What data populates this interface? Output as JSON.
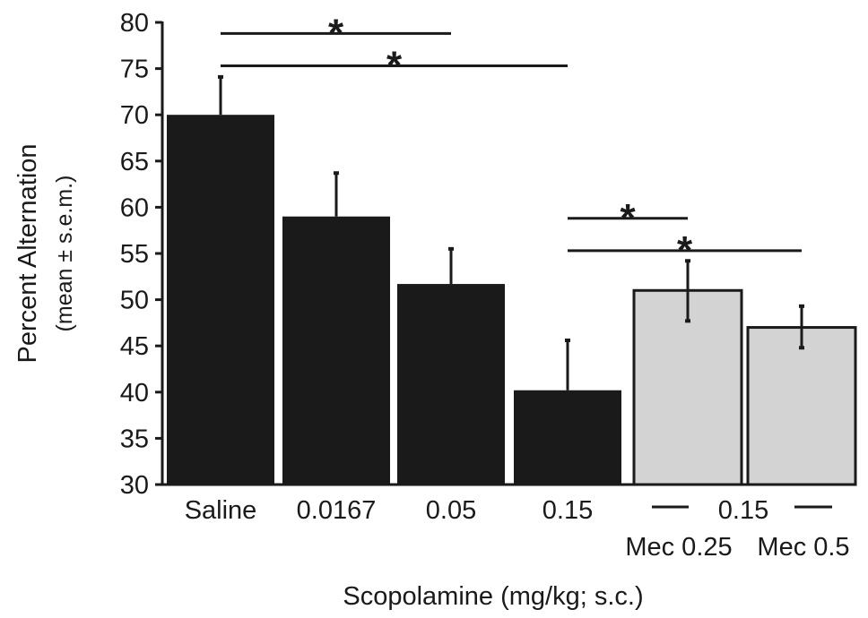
{
  "chart_data": {
    "type": "bar",
    "title": "",
    "ylabel": "Percent Alternation",
    "ylabel_sub": "(mean ± s.e.m.)",
    "xlabel": "Scopolamine (mg/kg; s.c.)",
    "ylim": [
      30,
      80
    ],
    "yticks": [
      "30",
      "35",
      "40",
      "45",
      "50",
      "55",
      "60",
      "65",
      "70",
      "75",
      "80"
    ],
    "grid": false,
    "legend": "none",
    "categories": [
      "Saline",
      "0.0167",
      "0.05",
      "0.15",
      "Mec 0.25",
      "Mec 0.5"
    ],
    "values": [
      70,
      59,
      51.7,
      40.2,
      51,
      47
    ],
    "error_upper": [
      4.1,
      4.7,
      3.8,
      5.4,
      3.2,
      2.3
    ],
    "error_lower": [
      0,
      0,
      0,
      0,
      3.3,
      2.2
    ],
    "bar_colors": [
      "#1a1a1a",
      "#1a1a1a",
      "#1a1a1a",
      "#1a1a1a",
      "#d3d3d3",
      "#d3d3d3"
    ],
    "group_label": "0.15",
    "significance": [
      {
        "from": 0,
        "to": 2,
        "level": 78.8,
        "label": "*"
      },
      {
        "from": 0,
        "to": 3,
        "level": 75.3,
        "label": "*"
      },
      {
        "from": 3,
        "to": 4,
        "level": 58.8,
        "label": "*"
      },
      {
        "from": 3,
        "to": 5,
        "level": 55.3,
        "label": "*"
      }
    ]
  }
}
